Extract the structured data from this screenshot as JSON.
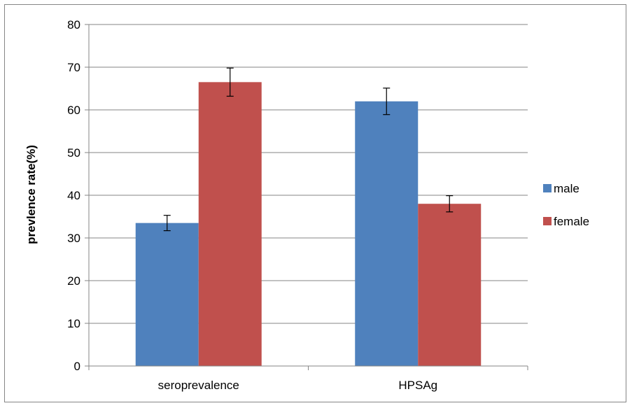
{
  "chart_data": {
    "type": "bar",
    "title": "",
    "xlabel": "",
    "ylabel": "prevlence rate(%)",
    "categories": [
      "seroprevalence",
      "HPSAg"
    ],
    "series": [
      {
        "name": "male",
        "values": [
          33.5,
          62.0
        ],
        "errors": [
          1.8,
          3.1
        ],
        "color": "#4F81BD"
      },
      {
        "name": "female",
        "values": [
          66.5,
          38.0
        ],
        "errors": [
          3.3,
          1.9
        ],
        "color": "#C0504D"
      }
    ],
    "ylim": [
      0,
      80
    ],
    "yticks": [
      0,
      10,
      20,
      30,
      40,
      50,
      60,
      70,
      80
    ],
    "grid": true,
    "legend_position": "right"
  }
}
